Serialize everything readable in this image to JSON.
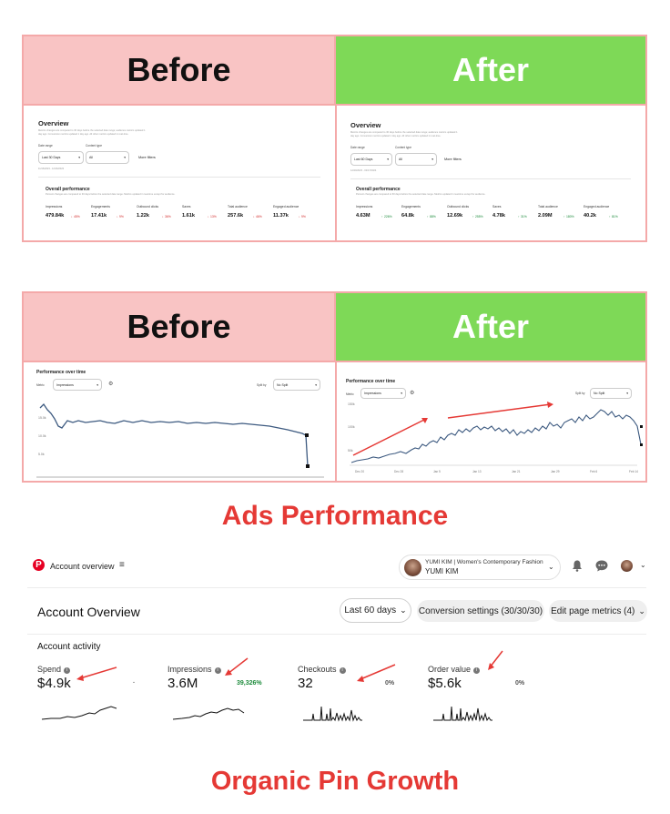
{
  "section1": {
    "before_label": "Before",
    "after_label": "After",
    "before": {
      "title": "Overview",
      "desc": [
        "Metrics changes are compared to 30 days before the selected date range; audience metrics updated 1",
        "day ago. Conversion metrics updated 1 day ago. All other metrics updated in real-time."
      ],
      "date_range_label": "Date range",
      "date_range_value": "Last 30 Days",
      "content_type_label": "Content type",
      "content_type_value": "All",
      "more_filters": "More filters",
      "date_span": "11/16/2023 - 12/16/2023",
      "perf_title": "Overall performance",
      "perf_desc": "Percent changes are compared to 30 days before the selected date range. Metrics updated in real-time except for audience.",
      "metrics": [
        {
          "name": "Impressions",
          "value": "479.84k",
          "change": "45%"
        },
        {
          "name": "Engagements",
          "value": "17.41k",
          "change": "9%"
        },
        {
          "name": "Outbound clicks",
          "value": "1.22k",
          "change": "36%"
        },
        {
          "name": "Saves",
          "value": "1.61k",
          "change": "13%"
        },
        {
          "name": "Total audience",
          "value": "257.6k",
          "change": "46%"
        },
        {
          "name": "Engaged audience",
          "value": "11.37k",
          "change": "9%"
        }
      ]
    },
    "after": {
      "title": "Overview",
      "desc": [
        "Metrics changes are compared to 30 days before the selected date range; audience metrics updated 1",
        "day ago. Conversion metrics updated 1 day ago. All other metrics updated in real-time."
      ],
      "date_range_label": "Date range",
      "date_range_value": "Last 60 Days",
      "content_type_label": "Content type",
      "content_type_value": "All",
      "more_filters": "More filters",
      "date_span": "12/20/2023 - 02/17/2024",
      "perf_title": "Overall performance",
      "perf_desc": "Percent changes are compared to 60 days before the selected date range. Metrics updated in real-time except for audience.",
      "metrics": [
        {
          "name": "Impressions",
          "value": "4.63M",
          "change": "226%"
        },
        {
          "name": "Engagements",
          "value": "64.8k",
          "change": "88%"
        },
        {
          "name": "Outbound clicks",
          "value": "12.69k",
          "change": "255%"
        },
        {
          "name": "Saves",
          "value": "4.78k",
          "change": "31%"
        },
        {
          "name": "Total audience",
          "value": "2.09M",
          "change": "180%"
        },
        {
          "name": "Engaged audience",
          "value": "40.2k",
          "change": "81%"
        }
      ]
    }
  },
  "section2": {
    "before_label": "Before",
    "after_label": "After",
    "before": {
      "title": "Performance over time",
      "metric_label": "Metric",
      "metric_value": "Impressions",
      "split_label": "Split by",
      "split_value": "No Split",
      "y_ticks": [
        "15.0k",
        "10.0k",
        "5.0k"
      ]
    },
    "after": {
      "title": "Performance over time",
      "metric_label": "Metric",
      "metric_value": "Impressions",
      "split_label": "Split by",
      "split_value": "No Split",
      "y_ticks": [
        "150k",
        "100k",
        "50k"
      ],
      "x_ticks": [
        "Dec 20",
        "Dec 28",
        "Jan 5",
        "Jan 13",
        "Jan 21",
        "Jan 29",
        "Feb 6",
        "Feb 14"
      ]
    }
  },
  "ads_title": "Ads Performance",
  "account": {
    "nav_title": "Account overview",
    "profile_name": "YUMI KIM | Women's Contemporary Fashion",
    "profile_sub": "YUMI KIM",
    "page_title": "Account Overview",
    "date_filter": "Last 60 days",
    "conversion_settings": "Conversion settings (30/30/30)",
    "edit_metrics": "Edit page metrics (4)",
    "activity_title": "Account activity",
    "metrics": [
      {
        "name": "Spend",
        "value": "$4.9k",
        "change": "·"
      },
      {
        "name": "Impressions",
        "value": "3.6M",
        "change": "39,326%"
      },
      {
        "name": "Checkouts",
        "value": "32",
        "change": "0%"
      },
      {
        "name": "Order value",
        "value": "$5.6k",
        "change": "0%"
      }
    ]
  },
  "organic_title": "Organic Pin Growth",
  "colors": {
    "before_bg": "#f9c4c4",
    "after_bg": "#7ed957",
    "title_red": "#e53935",
    "arrow_red": "#e53935",
    "line": "#3d5a80"
  }
}
